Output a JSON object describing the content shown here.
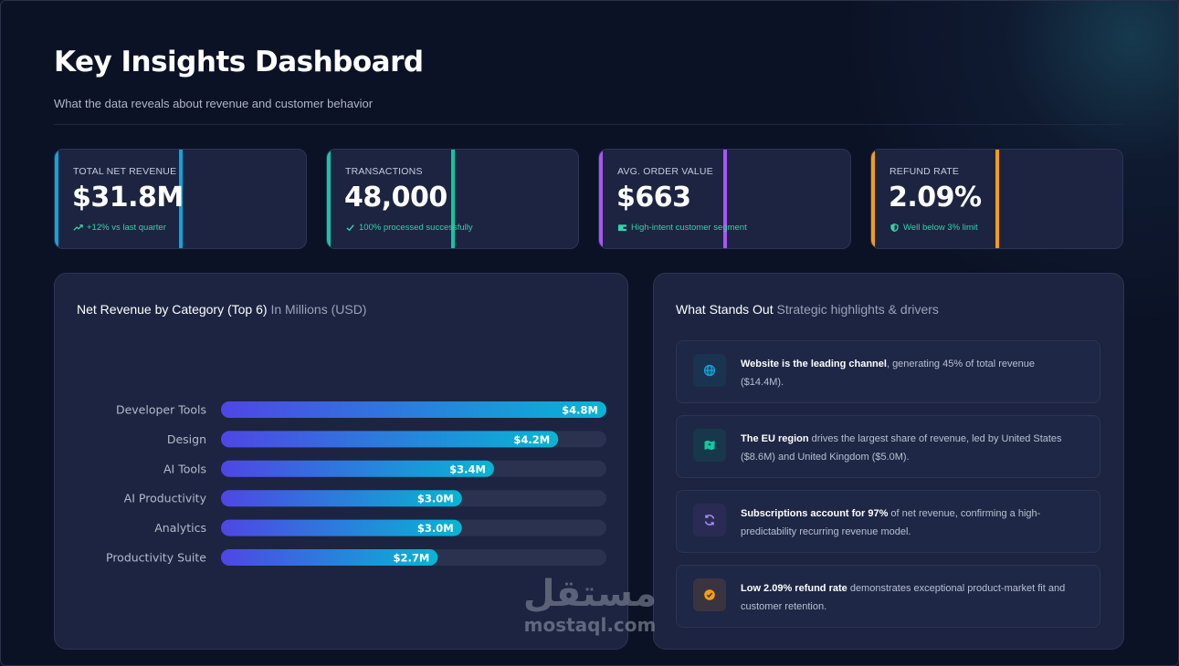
{
  "header": {
    "title": "Key Insights Dashboard",
    "subtitle": "What the data reveals about revenue and customer behavior"
  },
  "kpis": [
    {
      "label": "TOTAL NET REVENUE",
      "value": "$31.8M",
      "note": "+12% vs last quarter",
      "icon": "trend-up-icon",
      "color": "#0ea5d8",
      "note_color": "#34d3a8"
    },
    {
      "label": "TRANSACTIONS",
      "value": "48,000",
      "note": "100% processed successfully",
      "icon": "check-icon",
      "color": "#10c9a0",
      "note_color": "#34d3a8"
    },
    {
      "label": "AVG. ORDER VALUE",
      "value": "$663",
      "note": "High-intent customer segment",
      "icon": "wallet-icon",
      "color": "#a855f7",
      "note_color": "#34d3a8"
    },
    {
      "label": "REFUND RATE",
      "value": "2.09%",
      "note": "Well below 3% limit",
      "icon": "shield-icon",
      "color": "#f59e0b",
      "note_color": "#34d3a8"
    }
  ],
  "chart_panel": {
    "title": "Net Revenue by Category (Top 6)",
    "subtitle": "In Millions (USD)"
  },
  "chart_data": {
    "type": "bar",
    "orientation": "horizontal",
    "title": "Net Revenue by Category (Top 6)",
    "subtitle": "In Millions (USD)",
    "categories": [
      "Developer Tools",
      "Design",
      "AI Tools",
      "AI Productivity",
      "Analytics",
      "Productivity Suite"
    ],
    "values": [
      4.8,
      4.2,
      3.4,
      3.0,
      3.0,
      2.7
    ],
    "labels": [
      "$4.8M",
      "$4.2M",
      "$3.4M",
      "$3.0M",
      "$3.0M",
      "$2.7M"
    ],
    "xlim": [
      0,
      4.8
    ],
    "grid": false,
    "bar_gradient": [
      "#4f46e5",
      "#06b6d4"
    ]
  },
  "insights_panel": {
    "title": "What Stands Out",
    "subtitle": "Strategic highlights & drivers",
    "items": [
      {
        "bold": "Website is the leading channel",
        "text": ", generating 45% of total revenue ($14.4M).",
        "icon": "globe-icon",
        "icon_color": "#0ea5d8",
        "box_color": "#1a3350"
      },
      {
        "bold": "The EU region",
        "text": " drives the largest share of revenue, led by United States ($8.6M) and United Kingdom ($5.0M).",
        "icon": "map-icon",
        "icon_color": "#10c9a0",
        "box_color": "#17384a"
      },
      {
        "bold": "Subscriptions account for 97%",
        "text": " of net revenue, confirming a high-predictability recurring revenue model.",
        "icon": "refresh-icon",
        "icon_color": "#a78bfa",
        "box_color": "#2a2b55"
      },
      {
        "bold": "Low 2.09% refund rate",
        "text": " demonstrates exceptional product-market fit and customer retention.",
        "icon": "check-badge-icon",
        "icon_color": "#f59e0b",
        "box_color": "#3a3340"
      }
    ]
  },
  "watermark": {
    "arabic": "مستقل",
    "latin": "mostaql.com"
  }
}
